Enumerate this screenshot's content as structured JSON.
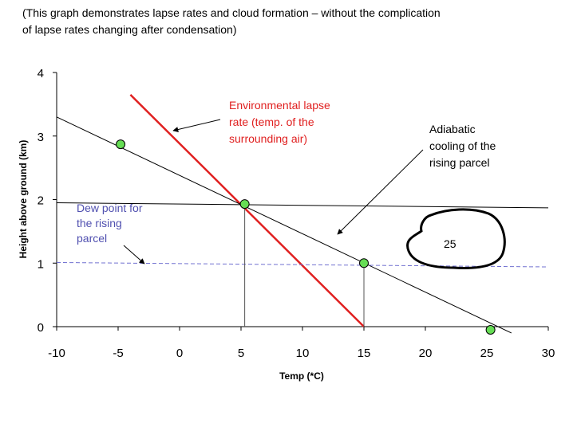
{
  "caption": {
    "line1": "(This graph demonstrates lapse rates and cloud formation – without the complication",
    "line2": "of  lapse rates changing after condensation)"
  },
  "chart_data": {
    "type": "line",
    "xlabel": "Temp (*C)",
    "ylabel": "Height above ground (km)",
    "xlim": [
      -10,
      30
    ],
    "ylim": [
      0,
      4
    ],
    "xticks": [
      -10,
      -5,
      0,
      5,
      10,
      15,
      20,
      25,
      30
    ],
    "yticks": [
      0,
      1,
      2,
      3,
      4
    ],
    "grid": false,
    "series": [
      {
        "key": "env",
        "color": "#e02020",
        "points": [
          [
            -4,
            3.65
          ],
          [
            15,
            0
          ]
        ]
      },
      {
        "key": "adiabatic",
        "color": "#000000",
        "points": [
          [
            -10,
            3.3
          ],
          [
            27,
            -0.1
          ]
        ]
      },
      {
        "key": "dewline",
        "color": "#000000",
        "points": [
          [
            -10,
            1.95
          ],
          [
            30,
            1.87
          ]
        ]
      },
      {
        "key": "dewpoint",
        "color": "#7070d0",
        "dashed": true,
        "points": [
          [
            -10,
            1.01
          ],
          [
            30,
            0.94
          ]
        ]
      }
    ],
    "markers": {
      "color": "#66dd55",
      "points": [
        [
          -4.8,
          2.87
        ],
        [
          5.3,
          1.93
        ],
        [
          15,
          1.0
        ],
        [
          25.3,
          -0.05
        ]
      ]
    },
    "vertical_drops": [
      [
        5.3,
        1.93
      ],
      [
        15,
        1.0
      ]
    ],
    "annotations": {
      "env_label": {
        "lines": [
          "Environmental lapse",
          "rate (temp. of the",
          "surrounding air)"
        ],
        "color": "#e02020"
      },
      "adiabatic_label": {
        "lines": [
          "Adiabatic",
          "cooling of the",
          "rising parcel"
        ],
        "color": "#000000"
      },
      "dew_label": {
        "lines": [
          "Dew point for",
          "the rising",
          "parcel"
        ],
        "color": "#5050b0"
      },
      "cloud_label": {
        "text": "25",
        "color": "#000000"
      }
    }
  }
}
